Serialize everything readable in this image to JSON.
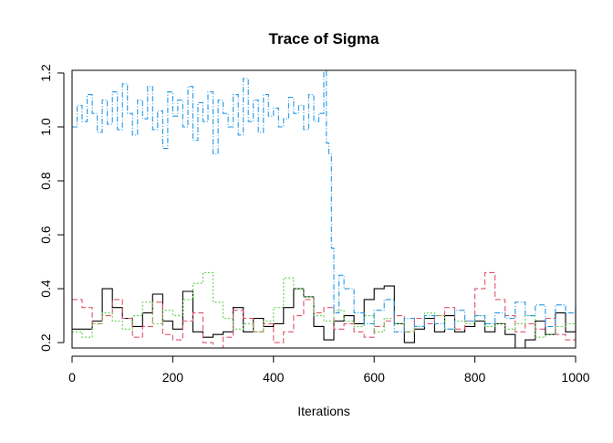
{
  "chart_data": {
    "type": "line",
    "title": "Trace of Sigma",
    "xlabel": "Iterations",
    "ylabel": "",
    "xlim": [
      0,
      1000
    ],
    "ylim": [
      0.18,
      1.21
    ],
    "x_ticks": [
      0,
      200,
      400,
      600,
      800,
      1000
    ],
    "y_ticks": [
      0.2,
      0.4,
      0.6,
      0.8,
      1.0,
      1.2
    ],
    "x_tick_labels": [
      "0",
      "200",
      "400",
      "600",
      "800",
      "1000"
    ],
    "y_tick_labels": [
      "0.2",
      "0.4",
      "0.6",
      "0.8",
      "1.0",
      "1.2"
    ],
    "grid": false,
    "legend": "none",
    "series": [
      {
        "color": "#000000",
        "dash": "none",
        "x": [
          0,
          20,
          40,
          60,
          80,
          100,
          120,
          140,
          160,
          180,
          200,
          220,
          240,
          260,
          280,
          300,
          320,
          340,
          360,
          380,
          400,
          420,
          440,
          460,
          480,
          500,
          520,
          540,
          560,
          580,
          600,
          620,
          640,
          660,
          680,
          700,
          720,
          740,
          760,
          780,
          800,
          820,
          840,
          860,
          880,
          900,
          920,
          940,
          960,
          980,
          1000
        ],
        "y": [
          0.25,
          0.25,
          0.28,
          0.4,
          0.33,
          0.29,
          0.26,
          0.31,
          0.38,
          0.28,
          0.25,
          0.39,
          0.24,
          0.22,
          0.23,
          0.24,
          0.33,
          0.24,
          0.29,
          0.26,
          0.27,
          0.33,
          0.4,
          0.37,
          0.26,
          0.21,
          0.28,
          0.3,
          0.27,
          0.36,
          0.4,
          0.41,
          0.27,
          0.2,
          0.25,
          0.29,
          0.24,
          0.3,
          0.24,
          0.26,
          0.28,
          0.24,
          0.27,
          0.23,
          0.18,
          0.21,
          0.28,
          0.23,
          0.31,
          0.24,
          0.33
        ]
      },
      {
        "color": "#df536b",
        "dash": "6,3",
        "x": [
          0,
          20,
          40,
          60,
          80,
          100,
          120,
          140,
          160,
          180,
          200,
          220,
          240,
          260,
          280,
          300,
          320,
          340,
          360,
          380,
          400,
          420,
          440,
          460,
          480,
          500,
          520,
          540,
          560,
          580,
          600,
          620,
          640,
          660,
          680,
          700,
          720,
          740,
          760,
          780,
          800,
          820,
          840,
          860,
          880,
          900,
          920,
          940,
          960,
          980,
          1000
        ],
        "y": [
          0.36,
          0.33,
          0.27,
          0.3,
          0.36,
          0.29,
          0.22,
          0.26,
          0.35,
          0.23,
          0.21,
          0.28,
          0.31,
          0.2,
          0.18,
          0.22,
          0.32,
          0.29,
          0.24,
          0.27,
          0.2,
          0.24,
          0.3,
          0.36,
          0.31,
          0.33,
          0.25,
          0.27,
          0.24,
          0.22,
          0.26,
          0.28,
          0.3,
          0.24,
          0.29,
          0.27,
          0.3,
          0.33,
          0.25,
          0.28,
          0.4,
          0.46,
          0.36,
          0.3,
          0.24,
          0.27,
          0.25,
          0.29,
          0.23,
          0.21,
          0.22
        ]
      },
      {
        "color": "#61d04f",
        "dash": "2,2",
        "x": [
          0,
          20,
          40,
          60,
          80,
          100,
          120,
          140,
          160,
          180,
          200,
          220,
          240,
          260,
          280,
          300,
          320,
          340,
          360,
          380,
          400,
          420,
          440,
          460,
          480,
          500,
          520,
          540,
          560,
          580,
          600,
          620,
          640,
          660,
          680,
          700,
          720,
          740,
          760,
          780,
          800,
          820,
          840,
          860,
          880,
          900,
          920,
          940,
          960,
          980,
          1000
        ],
        "y": [
          0.24,
          0.22,
          0.27,
          0.31,
          0.28,
          0.25,
          0.3,
          0.35,
          0.27,
          0.32,
          0.3,
          0.36,
          0.42,
          0.46,
          0.35,
          0.29,
          0.25,
          0.27,
          0.24,
          0.28,
          0.33,
          0.44,
          0.4,
          0.37,
          0.3,
          0.28,
          0.32,
          0.28,
          0.26,
          0.3,
          0.24,
          0.29,
          0.27,
          0.24,
          0.26,
          0.31,
          0.3,
          0.25,
          0.28,
          0.27,
          0.3,
          0.26,
          0.27,
          0.25,
          0.27,
          0.3,
          0.22,
          0.23,
          0.26,
          0.27,
          0.24
        ]
      },
      {
        "color": "#2297e6",
        "dash": "6,2,1,2",
        "x": [
          0,
          10,
          20,
          30,
          40,
          50,
          60,
          70,
          80,
          90,
          100,
          110,
          120,
          130,
          140,
          150,
          160,
          170,
          180,
          190,
          200,
          210,
          220,
          230,
          240,
          250,
          260,
          270,
          280,
          290,
          300,
          310,
          320,
          330,
          340,
          350,
          360,
          370,
          380,
          390,
          400,
          410,
          420,
          430,
          440,
          450,
          460,
          470,
          480,
          490,
          500,
          505,
          510,
          515,
          520,
          530,
          540,
          560,
          580,
          600,
          620,
          640,
          660,
          680,
          700,
          720,
          740,
          760,
          780,
          800,
          820,
          840,
          860,
          880,
          900,
          920,
          940,
          960,
          980,
          1000
        ],
        "y": [
          1.0,
          1.08,
          1.02,
          1.12,
          1.05,
          0.98,
          1.1,
          1.01,
          1.13,
          0.99,
          1.16,
          1.05,
          0.97,
          1.1,
          1.03,
          1.15,
          0.99,
          1.06,
          0.92,
          1.13,
          1.04,
          1.1,
          1.0,
          1.15,
          0.95,
          1.09,
          1.02,
          1.13,
          0.9,
          1.1,
          1.05,
          1.0,
          1.12,
          0.97,
          1.18,
          1.02,
          1.1,
          0.98,
          1.12,
          1.04,
          1.07,
          1.0,
          1.03,
          1.11,
          1.05,
          1.08,
          0.99,
          1.12,
          1.02,
          1.05,
          1.21,
          0.94,
          0.9,
          0.55,
          0.31,
          0.45,
          0.4,
          0.31,
          0.27,
          0.32,
          0.36,
          0.24,
          0.29,
          0.26,
          0.3,
          0.27,
          0.25,
          0.32,
          0.28,
          0.3,
          0.27,
          0.31,
          0.29,
          0.35,
          0.3,
          0.34,
          0.26,
          0.34,
          0.31,
          0.33
        ]
      }
    ]
  }
}
